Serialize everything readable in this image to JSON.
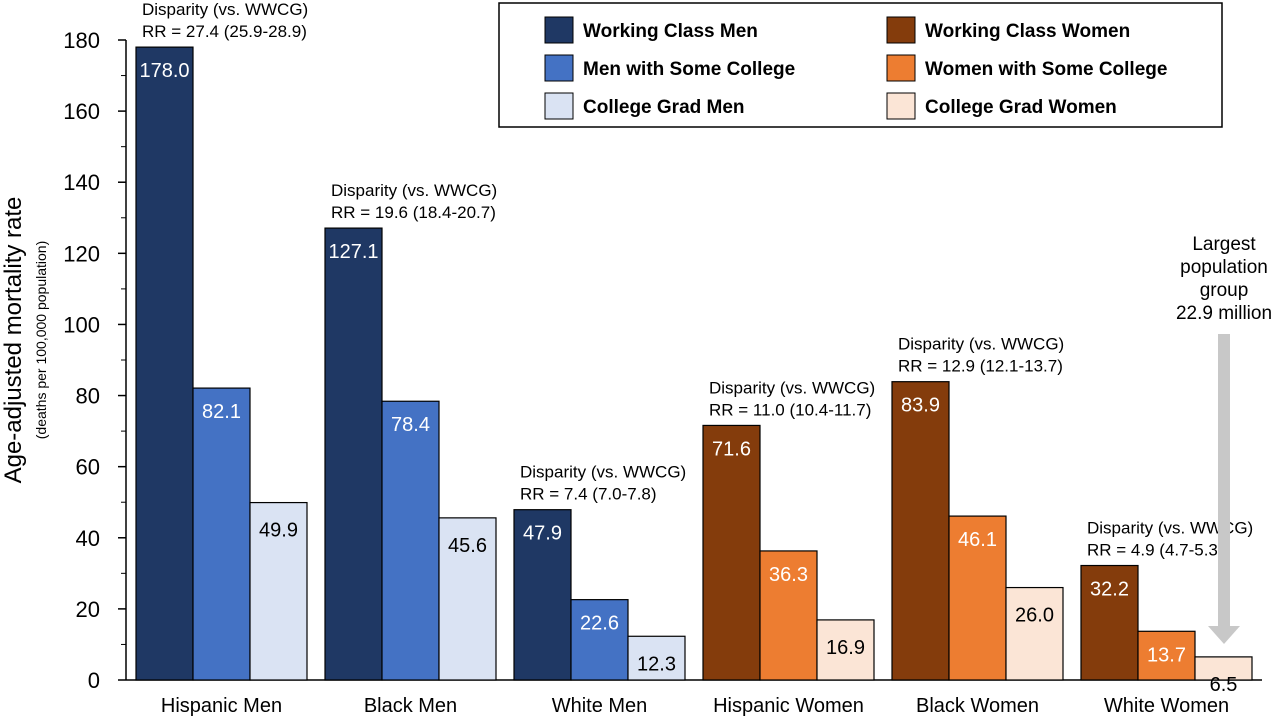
{
  "chart_data": {
    "type": "bar",
    "ylabel": "Age-adjusted mortality rate",
    "ylabel_sub": "(deaths per 100,000 population)",
    "ylim": [
      0,
      180
    ],
    "yticks": [
      "0",
      "20",
      "40",
      "60",
      "80",
      "100",
      "120",
      "140",
      "160",
      "180"
    ],
    "grid": false,
    "legend_position": "top-right",
    "categories": [
      "Hispanic Men",
      "Black Men",
      "White Men",
      "Hispanic Women",
      "Black Women",
      "White Women"
    ],
    "series": [
      {
        "name": "Working Class Men",
        "color": "#1f3864",
        "values": [
          178.0,
          127.1,
          47.9,
          null,
          null,
          null
        ],
        "labels": [
          "178.0",
          "127.1",
          "47.9",
          "",
          "",
          ""
        ]
      },
      {
        "name": "Men with Some College",
        "color": "#4472c4",
        "values": [
          82.1,
          78.4,
          22.6,
          null,
          null,
          null
        ],
        "labels": [
          "82.1",
          "78.4",
          "22.6",
          "",
          "",
          ""
        ]
      },
      {
        "name": "College Grad Men",
        "color": "#dae3f3",
        "values": [
          49.9,
          45.6,
          12.3,
          null,
          null,
          null
        ],
        "labels": [
          "49.9",
          "45.6",
          "12.3",
          "",
          "",
          ""
        ]
      },
      {
        "name": "Working Class Women",
        "color": "#843c0c",
        "values": [
          null,
          null,
          null,
          71.6,
          83.9,
          32.2
        ],
        "labels": [
          "",
          "",
          "",
          "71.6",
          "83.9",
          "32.2"
        ]
      },
      {
        "name": "Women with Some College",
        "color": "#ed7d31",
        "values": [
          null,
          null,
          null,
          36.3,
          46.1,
          13.7
        ],
        "labels": [
          "",
          "",
          "",
          "36.3",
          "46.1",
          "13.7"
        ]
      },
      {
        "name": "College Grad Women",
        "color": "#fbe5d6",
        "values": [
          null,
          null,
          null,
          16.9,
          26.0,
          6.5
        ],
        "labels": [
          "",
          "",
          "",
          "16.9",
          "26.0",
          "6.5"
        ]
      }
    ],
    "annotations": [
      {
        "line1": "Disparity (vs. WWCG)",
        "line2": "RR = 27.4 (25.9-28.9)"
      },
      {
        "line1": "Disparity (vs. WWCG)",
        "line2": "RR = 19.6 (18.4-20.7)"
      },
      {
        "line1": "Disparity (vs. WWCG)",
        "line2": "RR = 7.4 (7.0-7.8)"
      },
      {
        "line1": "Disparity (vs. WWCG)",
        "line2": "RR = 11.0 (10.4-11.7)"
      },
      {
        "line1": "Disparity (vs. WWCG)",
        "line2": "RR = 12.9 (12.1-13.7)"
      },
      {
        "line1": "Disparity (vs. WWCG)",
        "line2": "RR = 4.9 (4.7-5.3)"
      }
    ],
    "note": [
      "Largest",
      "population",
      "group",
      "22.9 million"
    ]
  }
}
